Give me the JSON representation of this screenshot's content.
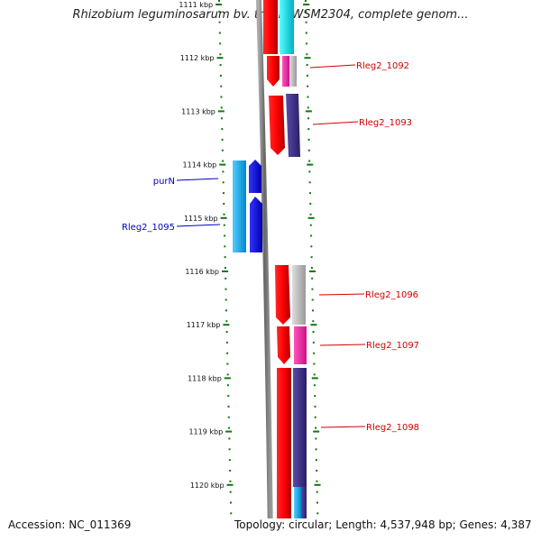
{
  "title": "Rhizobium leguminosarum bv. trifolii WSM2304, complete genom...",
  "accession": "Accession: NC_011369",
  "summary": "Topology: circular; Length: 4,537,948 bp; Genes: 4,387",
  "ticks": [
    {
      "label": "1111 kbp",
      "kbp": 1111
    },
    {
      "label": "1112 kbp",
      "kbp": 1112
    },
    {
      "label": "1113 kbp",
      "kbp": 1113
    },
    {
      "label": "1114 kbp",
      "kbp": 1114
    },
    {
      "label": "1115 kbp",
      "kbp": 1115
    },
    {
      "label": "1116 kbp",
      "kbp": 1116
    },
    {
      "label": "1117 kbp",
      "kbp": 1117
    },
    {
      "label": "1118 kbp",
      "kbp": 1118
    },
    {
      "label": "1119 kbp",
      "kbp": 1119
    },
    {
      "label": "1120 kbp",
      "kbp": 1120
    }
  ],
  "gene_labels": [
    {
      "name": "Rleg2_1092",
      "strand": "forward"
    },
    {
      "name": "Rleg2_1093",
      "strand": "forward"
    },
    {
      "name": "purN",
      "strand": "reverse"
    },
    {
      "name": "Rleg2_1095",
      "strand": "reverse"
    },
    {
      "name": "Rleg2_1096",
      "strand": "forward"
    },
    {
      "name": "Rleg2_1097",
      "strand": "forward"
    },
    {
      "name": "Rleg2_1098",
      "strand": "forward"
    }
  ],
  "colors": {
    "cds": "#ff0000",
    "reverse_cds": "#0000ff",
    "cyan": "#00e0e0",
    "light_blue": "#22aaee",
    "dark_blue": "#443388",
    "pink": "#ee2299",
    "gray": "#b0b0b0",
    "backbone": "#888888",
    "tick": "#117711",
    "fwd_label": "#d00000",
    "rev_label": "#0000c0"
  }
}
